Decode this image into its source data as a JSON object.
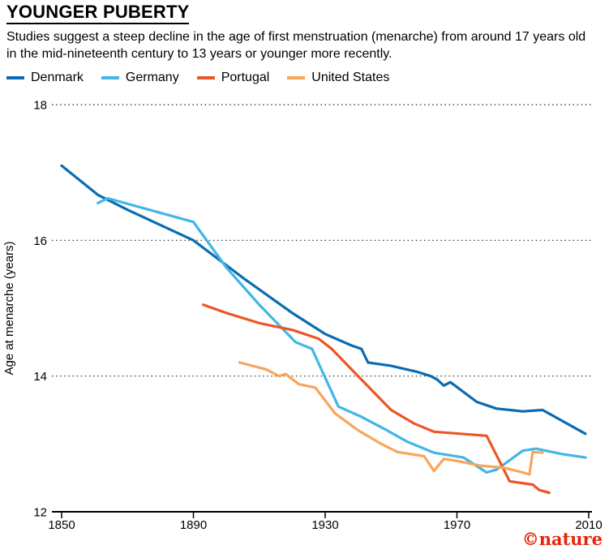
{
  "chart_data": {
    "type": "line",
    "title": "YOUNGER PUBERTY",
    "subtitle": "Studies suggest a steep decline in the age of first menstruation (menarche) from around 17 years old in the mid-nineteenth century to 13 years or younger more recently.",
    "xlabel": "",
    "ylabel": "Age at menarche (years)",
    "xlim": [
      1850,
      2010
    ],
    "ylim": [
      12,
      18
    ],
    "xticks": [
      1850,
      1890,
      1930,
      1970,
      2010
    ],
    "yticks": [
      12,
      14,
      16,
      18
    ],
    "grid": "horizontal-dotted",
    "legend_position": "top",
    "series": [
      {
        "name": "Denmark",
        "color": "#0a6cb0",
        "points": [
          [
            1850,
            17.1
          ],
          [
            1861,
            16.67
          ],
          [
            1870,
            16.45
          ],
          [
            1890,
            16.0
          ],
          [
            1905,
            15.45
          ],
          [
            1920,
            14.93
          ],
          [
            1930,
            14.62
          ],
          [
            1938,
            14.45
          ],
          [
            1941,
            14.4
          ],
          [
            1943,
            14.2
          ],
          [
            1950,
            14.15
          ],
          [
            1958,
            14.06
          ],
          [
            1962,
            14.0
          ],
          [
            1964,
            13.95
          ],
          [
            1966,
            13.86
          ],
          [
            1968,
            13.91
          ],
          [
            1976,
            13.62
          ],
          [
            1982,
            13.52
          ],
          [
            1990,
            13.48
          ],
          [
            1996,
            13.5
          ],
          [
            2009,
            13.15
          ]
        ]
      },
      {
        "name": "Germany",
        "color": "#41b6e6",
        "points": [
          [
            1861,
            16.55
          ],
          [
            1864,
            16.62
          ],
          [
            1890,
            16.27
          ],
          [
            1900,
            15.6
          ],
          [
            1910,
            15.05
          ],
          [
            1921,
            14.5
          ],
          [
            1926,
            14.4
          ],
          [
            1934,
            13.55
          ],
          [
            1941,
            13.4
          ],
          [
            1948,
            13.22
          ],
          [
            1955,
            13.03
          ],
          [
            1963,
            12.87
          ],
          [
            1972,
            12.8
          ],
          [
            1979,
            12.58
          ],
          [
            1982,
            12.62
          ],
          [
            1990,
            12.9
          ],
          [
            1994,
            12.93
          ],
          [
            2002,
            12.85
          ],
          [
            2009,
            12.8
          ]
        ]
      },
      {
        "name": "Portugal",
        "color": "#eb5627",
        "points": [
          [
            1893,
            15.05
          ],
          [
            1900,
            14.93
          ],
          [
            1910,
            14.78
          ],
          [
            1920,
            14.68
          ],
          [
            1928,
            14.55
          ],
          [
            1932,
            14.4
          ],
          [
            1940,
            14.0
          ],
          [
            1950,
            13.5
          ],
          [
            1957,
            13.3
          ],
          [
            1963,
            13.18
          ],
          [
            1971,
            13.15
          ],
          [
            1979,
            13.12
          ],
          [
            1986,
            12.45
          ],
          [
            1993,
            12.4
          ],
          [
            1995,
            12.32
          ],
          [
            1998,
            12.28
          ]
        ]
      },
      {
        "name": "United States",
        "color": "#f9a55c",
        "points": [
          [
            1904,
            14.2
          ],
          [
            1912,
            14.1
          ],
          [
            1916,
            14.0
          ],
          [
            1918,
            14.03
          ],
          [
            1922,
            13.88
          ],
          [
            1927,
            13.83
          ],
          [
            1933,
            13.45
          ],
          [
            1940,
            13.2
          ],
          [
            1947,
            13.0
          ],
          [
            1952,
            12.88
          ],
          [
            1960,
            12.82
          ],
          [
            1963,
            12.6
          ],
          [
            1966,
            12.78
          ],
          [
            1970,
            12.75
          ],
          [
            1977,
            12.68
          ],
          [
            1984,
            12.65
          ],
          [
            1990,
            12.58
          ],
          [
            1992,
            12.55
          ],
          [
            1993,
            12.88
          ],
          [
            1996,
            12.87
          ]
        ]
      }
    ]
  },
  "branding": {
    "credit": "©nature"
  }
}
